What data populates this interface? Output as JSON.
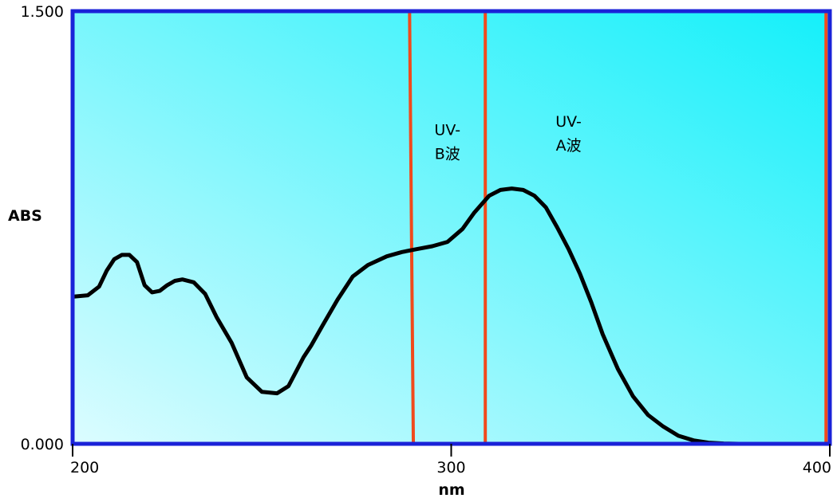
{
  "chart_data": {
    "type": "line",
    "title": "",
    "xlabel": "nm",
    "ylabel": "ABS",
    "xlim": [
      200,
      400
    ],
    "ylim": [
      0,
      1.5
    ],
    "x_ticks": [
      {
        "value": 200,
        "label": "200"
      },
      {
        "value": 300,
        "label": "300"
      },
      {
        "value": 400,
        "label": "400"
      }
    ],
    "y_ticks": [
      {
        "value": 0,
        "label": "0.000"
      },
      {
        "value": 1.5,
        "label": "1.500"
      }
    ],
    "grid": false,
    "colors": {
      "plot_gradient_light": "#dcfcff",
      "plot_gradient_dark": "#14f0fa",
      "frame": "#1a22d8",
      "curve": "#000000",
      "band_lines": "#f04a1c"
    },
    "band_lines": [
      {
        "x_top": 289,
        "x_bottom": 290
      },
      {
        "x_top": 309,
        "x_bottom": 309
      },
      {
        "x_top": 399,
        "x_bottom": 399
      }
    ],
    "region_labels": [
      {
        "lines": [
          "UV-",
          "B波"
        ],
        "x": 299,
        "y": 1.07
      },
      {
        "lines": [
          "UV-",
          "A波"
        ],
        "x": 331,
        "y": 1.1
      }
    ],
    "series": [
      {
        "x": [
          200,
          204,
          207,
          209,
          211,
          213,
          215,
          217,
          219,
          221,
          223,
          225,
          227,
          229,
          232,
          235,
          238,
          242,
          246,
          250,
          254,
          257,
          259,
          261,
          263,
          266,
          270,
          274,
          278,
          283,
          287,
          291,
          295,
          299,
          303,
          306,
          308,
          310,
          313,
          316,
          319,
          322,
          325,
          328,
          331,
          334,
          337,
          340,
          344,
          348,
          352,
          356,
          360,
          364,
          368,
          372,
          376,
          380
        ],
        "y": [
          0.51,
          0.515,
          0.545,
          0.6,
          0.64,
          0.655,
          0.655,
          0.63,
          0.55,
          0.525,
          0.53,
          0.55,
          0.565,
          0.57,
          0.56,
          0.52,
          0.44,
          0.35,
          0.23,
          0.18,
          0.175,
          0.2,
          0.25,
          0.3,
          0.34,
          0.41,
          0.5,
          0.58,
          0.62,
          0.65,
          0.665,
          0.675,
          0.685,
          0.7,
          0.745,
          0.8,
          0.83,
          0.86,
          0.88,
          0.885,
          0.88,
          0.86,
          0.82,
          0.75,
          0.675,
          0.59,
          0.49,
          0.38,
          0.26,
          0.165,
          0.1,
          0.06,
          0.028,
          0.012,
          0.004,
          0.001,
          0,
          0
        ]
      }
    ]
  }
}
